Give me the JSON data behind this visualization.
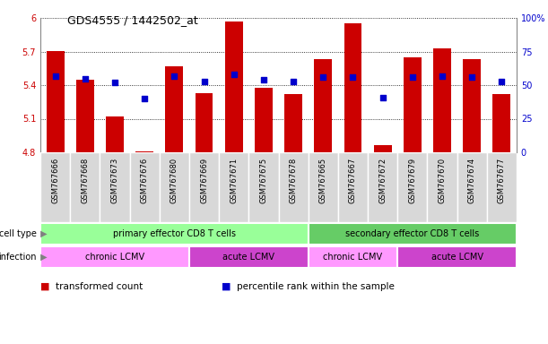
{
  "title": "GDS4555 / 1442502_at",
  "samples": [
    "GSM767666",
    "GSM767668",
    "GSM767673",
    "GSM767676",
    "GSM767680",
    "GSM767669",
    "GSM767671",
    "GSM767675",
    "GSM767678",
    "GSM767665",
    "GSM767667",
    "GSM767672",
    "GSM767679",
    "GSM767670",
    "GSM767674",
    "GSM767677"
  ],
  "transformed_count": [
    5.7,
    5.45,
    5.12,
    4.81,
    5.57,
    5.33,
    5.97,
    5.38,
    5.32,
    5.63,
    5.95,
    4.86,
    5.65,
    5.73,
    5.63,
    5.32
  ],
  "percentile_rank": [
    57,
    55,
    52,
    40,
    57,
    53,
    58,
    54,
    53,
    56,
    56,
    41,
    56,
    57,
    56,
    53
  ],
  "y_min": 4.8,
  "y_max": 6.0,
  "y_ticks": [
    4.8,
    5.1,
    5.4,
    5.7,
    6.0
  ],
  "y_tick_labels": [
    "4.8",
    "5.1",
    "5.4",
    "5.7",
    "6"
  ],
  "right_y_ticks": [
    0,
    25,
    50,
    75,
    100
  ],
  "right_y_tick_labels": [
    "0",
    "25",
    "50",
    "75",
    "100%"
  ],
  "bar_color": "#cc0000",
  "dot_color": "#0000cc",
  "bg_color": "#ffffff",
  "plot_bg_color": "#ffffff",
  "grid_color": "#000000",
  "cell_type_groups": [
    {
      "label": "primary effector CD8 T cells",
      "start": 0,
      "end": 8,
      "color": "#99ff99"
    },
    {
      "label": "secondary effector CD8 T cells",
      "start": 9,
      "end": 15,
      "color": "#66cc66"
    }
  ],
  "infection_groups": [
    {
      "label": "chronic LCMV",
      "start": 0,
      "end": 4,
      "color": "#ff99ff"
    },
    {
      "label": "acute LCMV",
      "start": 5,
      "end": 8,
      "color": "#cc44cc"
    },
    {
      "label": "chronic LCMV",
      "start": 9,
      "end": 11,
      "color": "#ff99ff"
    },
    {
      "label": "acute LCMV",
      "start": 12,
      "end": 15,
      "color": "#cc44cc"
    }
  ],
  "legend_items": [
    {
      "label": "transformed count",
      "color": "#cc0000"
    },
    {
      "label": "percentile rank within the sample",
      "color": "#0000cc"
    }
  ],
  "label_fontsize": 7,
  "tick_fontsize": 7,
  "sample_fontsize": 6
}
